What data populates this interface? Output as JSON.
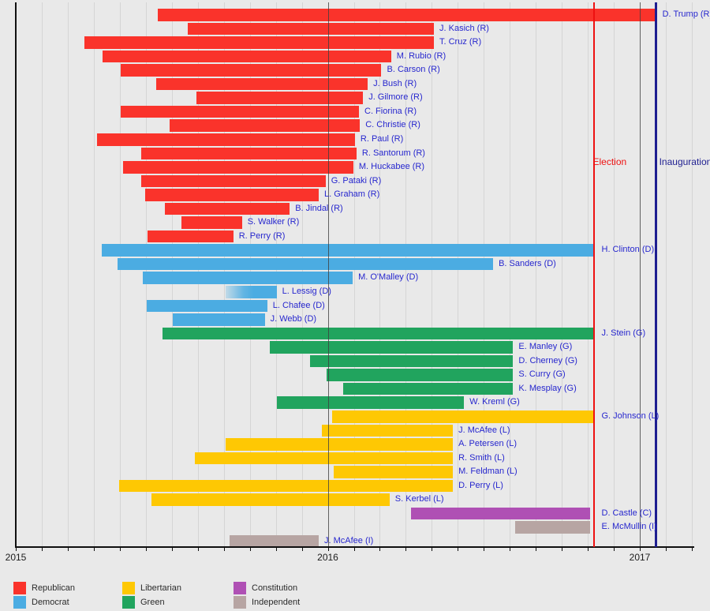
{
  "chart_data": {
    "type": "gantt",
    "title": "",
    "x_axis": {
      "range_start": 2015,
      "range_end": 2017.17,
      "ticks": [
        {
          "year": 2015,
          "label": "2015"
        },
        {
          "year": 2016,
          "label": "2016"
        },
        {
          "year": 2017,
          "label": "2017"
        }
      ],
      "minor_tick_interval": "month",
      "grid": true
    },
    "events": [
      {
        "id": "election",
        "label": "Election",
        "date": 2016.852,
        "color": "#ee1111",
        "line_width": 2
      },
      {
        "id": "inauguration",
        "label": "Inauguration",
        "date": 2017.052,
        "color": "#1e1e90",
        "line_width": 3
      }
    ],
    "parties": [
      {
        "id": "R",
        "name": "Republican",
        "color": "#fa332b"
      },
      {
        "id": "D",
        "name": "Democrat",
        "color": "#4bace2"
      },
      {
        "id": "L",
        "name": "Libertarian",
        "color": "#fec803"
      },
      {
        "id": "G",
        "name": "Green",
        "color": "#21a45e"
      },
      {
        "id": "C",
        "name": "Constitution",
        "color": "#af50b4"
      },
      {
        "id": "I",
        "name": "Independent",
        "color": "#b7a5a3"
      }
    ],
    "bars": [
      {
        "label": "D. Trump (R)",
        "party": "R",
        "start": 2015.455,
        "end": 2017.052
      },
      {
        "label": "J. Kasich (R)",
        "party": "R",
        "start": 2015.551,
        "end": 2016.34
      },
      {
        "label": "T. Cruz (R)",
        "party": "R",
        "start": 2015.22,
        "end": 2016.34
      },
      {
        "label": "M. Rubio (R)",
        "party": "R",
        "start": 2015.278,
        "end": 2016.203
      },
      {
        "label": "B. Carson (R)",
        "party": "R",
        "start": 2015.336,
        "end": 2016.172
      },
      {
        "label": "J. Bush (R)",
        "party": "R",
        "start": 2015.451,
        "end": 2016.128
      },
      {
        "label": "J. Gilmore (R)",
        "party": "R",
        "start": 2015.579,
        "end": 2016.113
      },
      {
        "label": "C. Fiorina (R)",
        "party": "R",
        "start": 2015.336,
        "end": 2016.1
      },
      {
        "label": "C. Christie (R)",
        "party": "R",
        "start": 2015.494,
        "end": 2016.103
      },
      {
        "label": "R. Paul (R)",
        "party": "R",
        "start": 2015.26,
        "end": 2016.087
      },
      {
        "label": "R. Santorum (R)",
        "party": "R",
        "start": 2015.401,
        "end": 2016.092
      },
      {
        "label": "M. Huckabee (R)",
        "party": "R",
        "start": 2015.343,
        "end": 2016.082
      },
      {
        "label": "G. Pataki (R)",
        "party": "R",
        "start": 2015.401,
        "end": 2015.993
      },
      {
        "label": "L. Graham (R)",
        "party": "R",
        "start": 2015.414,
        "end": 2015.971
      },
      {
        "label": "B. Jindal (R)",
        "party": "R",
        "start": 2015.477,
        "end": 2015.878
      },
      {
        "label": "S. Walker (R)",
        "party": "R",
        "start": 2015.53,
        "end": 2015.725
      },
      {
        "label": "R. Perry (R)",
        "party": "R",
        "start": 2015.423,
        "end": 2015.697
      },
      {
        "label": "H. Clinton (D)",
        "party": "D",
        "start": 2015.275,
        "end": 2016.852
      },
      {
        "label": "B. Sanders (D)",
        "party": "D",
        "start": 2015.325,
        "end": 2016.53
      },
      {
        "label": "M. O'Malley (D)",
        "party": "D",
        "start": 2015.407,
        "end": 2016.08
      },
      {
        "label": "L. Lessig (D)",
        "party": "D",
        "start": 2015.672,
        "end": 2015.836,
        "fade_left": true
      },
      {
        "label": "L. Chafee (D)",
        "party": "D",
        "start": 2015.419,
        "end": 2015.806
      },
      {
        "label": "J. Webb (D)",
        "party": "D",
        "start": 2015.502,
        "end": 2015.798
      },
      {
        "label": "J. Stein (G)",
        "party": "G",
        "start": 2015.47,
        "end": 2016.852
      },
      {
        "label": "E. Manley (G)",
        "party": "G",
        "start": 2015.813,
        "end": 2016.594
      },
      {
        "label": "D. Cherney (G)",
        "party": "G",
        "start": 2015.944,
        "end": 2016.594
      },
      {
        "label": "S. Curry (G)",
        "party": "G",
        "start": 2015.996,
        "end": 2016.594
      },
      {
        "label": "K. Mesplay (G)",
        "party": "G",
        "start": 2016.049,
        "end": 2016.594
      },
      {
        "label": "W. Kreml (G)",
        "party": "G",
        "start": 2015.838,
        "end": 2016.437
      },
      {
        "label": "G. Johnson (L)",
        "party": "L",
        "start": 2016.014,
        "end": 2016.852
      },
      {
        "label": "J. McAfee (L)",
        "party": "L",
        "start": 2015.98,
        "end": 2016.401
      },
      {
        "label": "A. Petersen (L)",
        "party": "L",
        "start": 2015.672,
        "end": 2016.401
      },
      {
        "label": "R. Smith (L)",
        "party": "L",
        "start": 2015.573,
        "end": 2016.401
      },
      {
        "label": "M. Feldman (L)",
        "party": "L",
        "start": 2016.018,
        "end": 2016.401
      },
      {
        "label": "D. Perry (L)",
        "party": "L",
        "start": 2015.331,
        "end": 2016.401
      },
      {
        "label": "S. Kerbel (L)",
        "party": "L",
        "start": 2015.434,
        "end": 2016.198
      },
      {
        "label": "D. Castle (C)",
        "party": "C",
        "start": 2016.266,
        "end": 2016.84
      },
      {
        "label": "E. McMullin (I)",
        "party": "I",
        "start": 2016.601,
        "end": 2016.84
      },
      {
        "label": "J. McAfee (I)",
        "party": "I",
        "start": 2015.684,
        "end": 2015.971
      }
    ],
    "legend": {
      "columns": [
        [
          "Republican",
          "Democrat"
        ],
        [
          "Libertarian",
          "Green"
        ],
        [
          "Constitution",
          "Independent"
        ]
      ]
    },
    "colors": {
      "background": "#e9e9e9",
      "grid": "#d5d5d5",
      "axis": "#101010",
      "bar_label_text": "#2727ce"
    }
  }
}
